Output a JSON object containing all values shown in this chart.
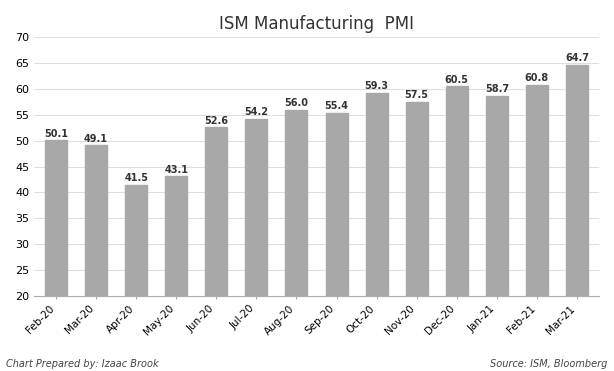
{
  "title": "ISM Manufacturing  PMI",
  "categories": [
    "Feb-20",
    "Mar-20",
    "Apr-20",
    "May-20",
    "Jun-20",
    "Jul-20",
    "Aug-20",
    "Sep-20",
    "Oct-20",
    "Nov-20",
    "Dec-20",
    "Jan-21",
    "Feb-21",
    "Mar-21"
  ],
  "values": [
    50.1,
    49.1,
    41.5,
    43.1,
    52.6,
    54.2,
    56.0,
    55.4,
    59.3,
    57.5,
    60.5,
    58.7,
    60.8,
    64.7
  ],
  "bar_color": "#a8a8a8",
  "ylim": [
    20,
    70
  ],
  "yticks": [
    20,
    25,
    30,
    35,
    40,
    45,
    50,
    55,
    60,
    65,
    70
  ],
  "ylabel_fontsize": 8,
  "xlabel_fontsize": 7.5,
  "title_fontsize": 12,
  "value_fontsize": 7,
  "footer_left": "Chart Prepared by: Izaac Brook",
  "footer_right": "Source: ISM, Bloomberg",
  "background_color": "#ffffff",
  "grid_color": "#d8d8d8"
}
